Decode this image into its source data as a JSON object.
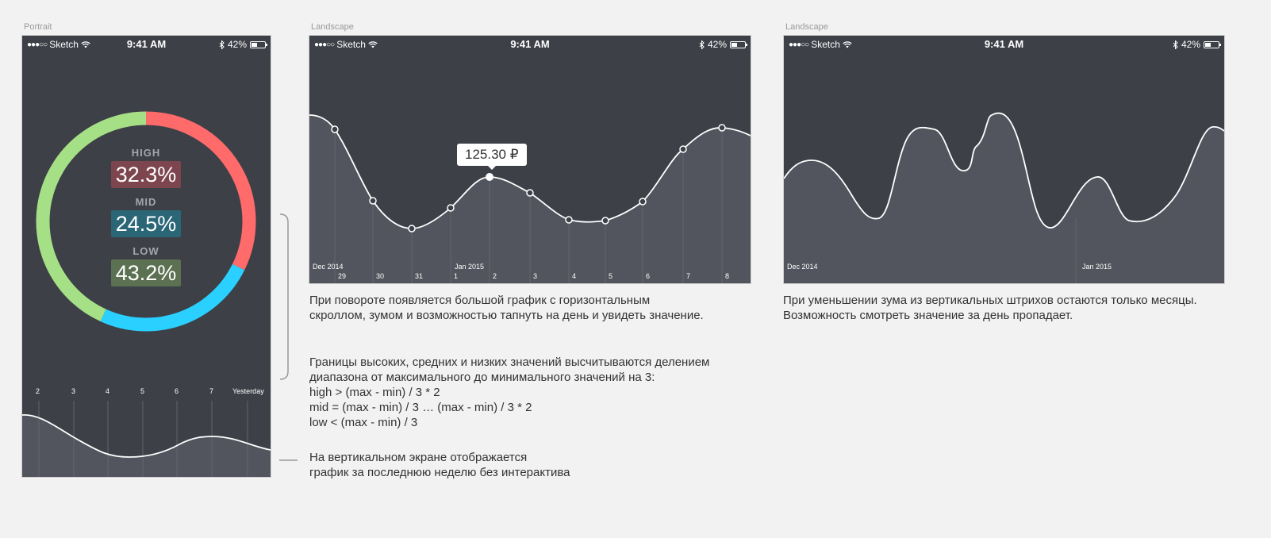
{
  "frames": {
    "portrait_label": "Portrait",
    "landscape1_label": "Landscape",
    "landscape2_label": "Landscape"
  },
  "status_bar": {
    "carrier": "Sketch",
    "signal": "●●●○○",
    "time": "9:41 AM",
    "battery": "42%",
    "battery_level": 0.42
  },
  "portrait": {
    "ring": [
      {
        "name": "high",
        "color": "#ff6b6b",
        "fraction": 0.323
      },
      {
        "name": "mid",
        "color": "#2ad0ff",
        "fraction": 0.245
      },
      {
        "name": "low",
        "color": "#a6e086",
        "fraction": 0.432
      }
    ],
    "stats": [
      {
        "label": "HIGH",
        "value": "32.3%",
        "color": "#7d454d"
      },
      {
        "label": "MID",
        "value": "24.5%",
        "color": "#2b6677"
      },
      {
        "label": "LOW",
        "value": "43.2%",
        "color": "#5b7151"
      }
    ],
    "week_labels": [
      "2",
      "3",
      "4",
      "5",
      "6",
      "7",
      "Yesterday"
    ]
  },
  "landscape1": {
    "tooltip": "125.30 ₽",
    "month_labels": [
      {
        "text": "Dec 2014",
        "day": 0
      },
      {
        "text": "Jan 2015",
        "day": 3
      }
    ],
    "days": [
      "29",
      "30",
      "31",
      "1",
      "2",
      "3",
      "4",
      "5",
      "6",
      "7",
      "8"
    ]
  },
  "landscape2": {
    "month_labels": [
      {
        "text": "Dec 2014"
      },
      {
        "text": "Jan 2015"
      }
    ]
  },
  "descriptions": {
    "landscape1": [
      "При повороте появляется большой график с горизонтальным",
      "скроллом, зумом и возможностью тапнуть на день и увидеть значение."
    ],
    "ranges": [
      "Границы высоких, средних и низких значений высчитываются делением",
      "диапазона от максимального до минимального значений на 3:",
      "high > (max - min) / 3 * 2",
      "mid = (max - min) / 3 … (max - min) / 3 * 2",
      "low < (max - min) / 3"
    ],
    "portrait_week": [
      "На вертикальном экране отображается",
      "график за последнюю неделю без интерактива"
    ],
    "landscape2": [
      "При уменьшении зума из вертикальных штрихов остаются только месяцы.",
      "Возможность смотреть значение за день пропадает."
    ]
  }
}
